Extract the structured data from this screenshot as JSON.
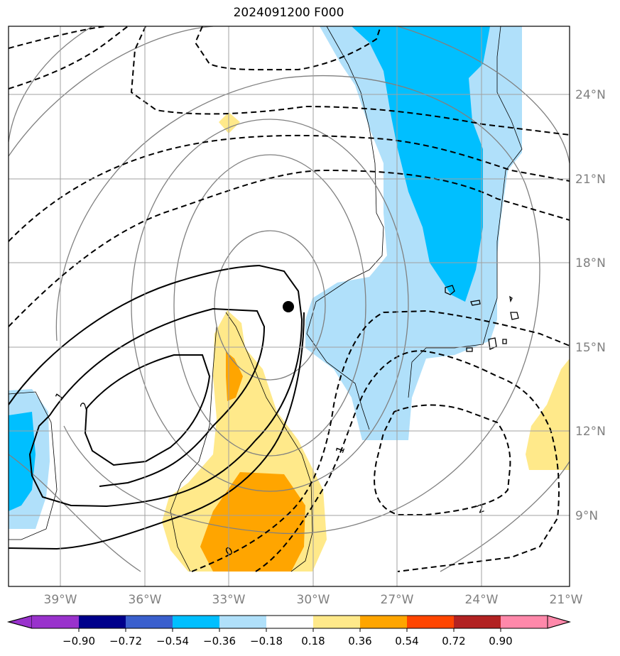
{
  "title": "2024091200 F000",
  "map": {
    "lat_labels": [
      "24°N",
      "21°N",
      "18°N",
      "15°N",
      "12°N",
      "9°N"
    ],
    "lon_labels": [
      "39°W",
      "36°W",
      "33°W",
      "30°W",
      "27°W",
      "24°W",
      "21°W"
    ],
    "gridline_color": "#a0a0a0",
    "center_marker": {
      "lon": "30.9°W",
      "lat": "16.5°N"
    }
  },
  "contours": {
    "solid_labels": [
      "1",
      "2"
    ],
    "dashed_labels": [
      "0",
      "1",
      "2"
    ]
  },
  "colorbar": {
    "ticks": [
      "−0.90",
      "−0.72",
      "−0.54",
      "−0.36",
      "−0.18",
      "0.18",
      "0.36",
      "0.54",
      "0.72",
      "0.90"
    ],
    "colors": [
      "#9932cc",
      "#00008b",
      "#3a5fcd",
      "#00bfff",
      "#b0e0fa",
      "#ffffff",
      "#ffe98a",
      "#ffa500",
      "#ff4500",
      "#b22222",
      "#ff88aa"
    ]
  }
}
